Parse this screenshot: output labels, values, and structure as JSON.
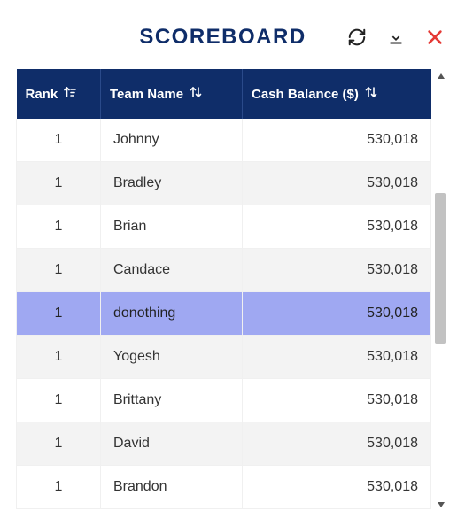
{
  "header": {
    "title": "SCOREBOARD"
  },
  "colors": {
    "header_bg": "#0f2d69",
    "header_text": "#ffffff",
    "row_alt_bg": "#f3f3f3",
    "highlight_bg": "#9fa8f2",
    "close_icon": "#e53935",
    "icon": "#222222"
  },
  "table": {
    "columns": [
      {
        "key": "rank",
        "label": "Rank",
        "sort": "asc-active"
      },
      {
        "key": "team",
        "label": "Team Name",
        "sort": "both"
      },
      {
        "key": "cash",
        "label": "Cash Balance ($)",
        "sort": "both"
      }
    ],
    "rows": [
      {
        "rank": "1",
        "team": "Johnny",
        "cash": "530,018",
        "highlight": false
      },
      {
        "rank": "1",
        "team": "Bradley",
        "cash": "530,018",
        "highlight": false
      },
      {
        "rank": "1",
        "team": "Brian",
        "cash": "530,018",
        "highlight": false
      },
      {
        "rank": "1",
        "team": "Candace",
        "cash": "530,018",
        "highlight": false
      },
      {
        "rank": "1",
        "team": "donothing",
        "cash": "530,018",
        "highlight": true
      },
      {
        "rank": "1",
        "team": "Yogesh",
        "cash": "530,018",
        "highlight": false
      },
      {
        "rank": "1",
        "team": "Brittany",
        "cash": "530,018",
        "highlight": false
      },
      {
        "rank": "1",
        "team": "David",
        "cash": "530,018",
        "highlight": false
      },
      {
        "rank": "1",
        "team": "Brandon",
        "cash": "530,018",
        "highlight": false
      }
    ]
  }
}
